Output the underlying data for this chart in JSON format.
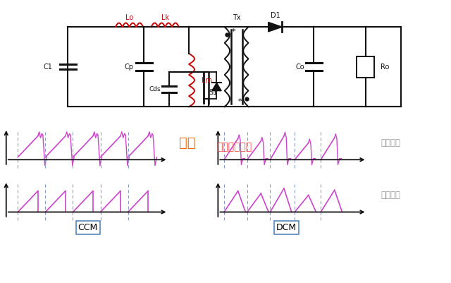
{
  "bg_color": "#ffffff",
  "circuit_label": "实际电路模型",
  "circuit_label_color": "#ff4444",
  "dliu_label": "电流",
  "dliu_label_color": "#ff6600",
  "ccm_label": "CCM",
  "dcm_label": "DCM",
  "actual_label": "实际波形",
  "ideal_label": "理想波形",
  "waveform_color": "#cc44cc",
  "axis_color": "#111111",
  "dashed_color": "#8899cc",
  "component_color_red": "#cc0000",
  "component_color_black": "#111111",
  "text_color_gray": "#999999",
  "box_edge_color": "#5588bb"
}
